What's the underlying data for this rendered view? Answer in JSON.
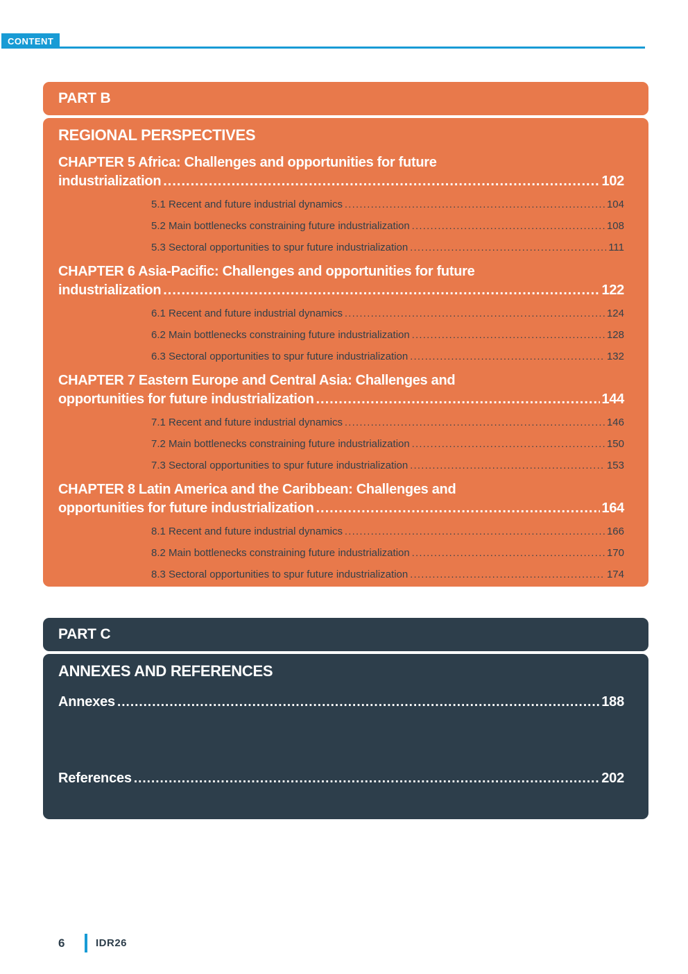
{
  "header": {
    "label": "CONTENT"
  },
  "colors": {
    "accent_blue": "#189BD5",
    "orange": "#E8794B",
    "dark_slate": "#2D3E4B",
    "item_text_on_orange": "#33404A"
  },
  "part_b": {
    "part_label": "PART B",
    "section_title": "REGIONAL PERSPECTIVES",
    "chapters": [
      {
        "title_line1": "CHAPTER 5 Africa: Challenges and opportunities for future",
        "title_line2": "industrialization",
        "page": "102",
        "items": [
          {
            "label": "5.1 Recent and future industrial dynamics",
            "page": "104"
          },
          {
            "label": "5.2 Main bottlenecks constraining future industrialization",
            "page": "108"
          },
          {
            "label": "5.3 Sectoral opportunities to spur future industrialization",
            "page": "111"
          }
        ]
      },
      {
        "title_line1": "CHAPTER 6 Asia-Pacific: Challenges and opportunities for future",
        "title_line2": "industrialization",
        "page": "122",
        "items": [
          {
            "label": "6.1 Recent and future industrial dynamics",
            "page": "124"
          },
          {
            "label": "6.2 Main bottlenecks constraining future industrialization",
            "page": "128"
          },
          {
            "label": "6.3 Sectoral opportunities to spur future industrialization",
            "page": "132"
          }
        ]
      },
      {
        "title_line1": "CHAPTER 7 Eastern Europe and Central Asia: Challenges and",
        "title_line2": "opportunities for future industrialization",
        "page": "144",
        "items": [
          {
            "label": "7.1 Recent and future industrial dynamics",
            "page": "146"
          },
          {
            "label": "7.2 Main bottlenecks constraining future industrialization",
            "page": "150"
          },
          {
            "label": "7.3 Sectoral opportunities to spur future industrialization",
            "page": "153"
          }
        ]
      },
      {
        "title_line1": "CHAPTER 8 Latin America and the Caribbean: Challenges and",
        "title_line2": "opportunities for future industrialization",
        "page": "164",
        "items": [
          {
            "label": "8.1 Recent and future industrial dynamics",
            "page": "166"
          },
          {
            "label": "8.2 Main bottlenecks constraining future industrialization",
            "page": "170"
          },
          {
            "label": "8.3 Sectoral opportunities to spur future industrialization",
            "page": "174"
          }
        ]
      }
    ]
  },
  "part_c": {
    "part_label": "PART C",
    "section_title": "ANNEXES AND REFERENCES",
    "entries": [
      {
        "label": "Annexes",
        "page": "188"
      },
      {
        "label": "References",
        "page": "202"
      }
    ]
  },
  "footer": {
    "page_number": "6",
    "report_code": "IDR26"
  }
}
